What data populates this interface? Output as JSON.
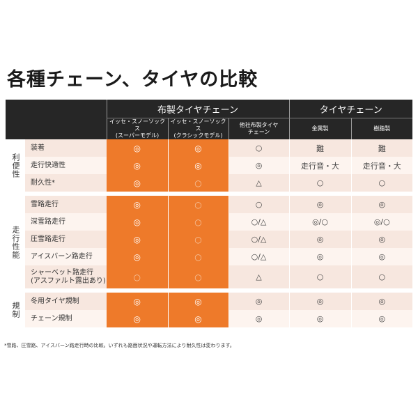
{
  "title": "各種チェーン、タイヤの比較",
  "groups": {
    "fabric": "布製タイヤチェーン",
    "chain": "タイヤチェーン"
  },
  "columns": {
    "super_l1": "イッセ・スノーソックス",
    "super_l2": "(スーパーモデル)",
    "classic_l1": "イッセ・スノーソックス",
    "classic_l2": "(クラシックモデル)",
    "other_l1": "他社布製タイヤ",
    "other_l2": "チェーン",
    "metal": "金属製",
    "resin": "樹脂製"
  },
  "categories": {
    "convenience": "利便性",
    "driving": "走行性能",
    "regulation": "規制"
  },
  "rows": [
    {
      "label": "装着",
      "super": "◎",
      "classic": "◎",
      "other": "○",
      "metal": "難",
      "resin": "難"
    },
    {
      "label": "走行快適性",
      "super": "◎",
      "classic": "◎",
      "other": "◎",
      "metal": "走行音・大",
      "resin": "走行音・大"
    },
    {
      "label": "耐久性*",
      "super": "◎",
      "classic": "○",
      "other": "△",
      "metal": "○",
      "resin": "○"
    },
    {
      "label": "雪路走行",
      "super": "◎",
      "classic": "○",
      "other": "○",
      "metal": "◎",
      "resin": "◎"
    },
    {
      "label": "深雪路走行",
      "super": "◎",
      "classic": "○",
      "other": "○/△",
      "metal": "◎/○",
      "resin": "◎/○"
    },
    {
      "label": "圧雪路走行",
      "super": "◎",
      "classic": "○",
      "other": "○/△",
      "metal": "◎",
      "resin": "◎"
    },
    {
      "label": "アイスバーン路走行",
      "super": "◎",
      "classic": "○",
      "other": "○/△",
      "metal": "◎",
      "resin": "◎"
    },
    {
      "label_l1": "シャーベット路走行",
      "label_l2": "(アスファルト露出あり)",
      "super": "○",
      "classic": "○",
      "other": "△",
      "metal": "○",
      "resin": "○"
    },
    {
      "label": "冬用タイヤ規制",
      "super": "◎",
      "classic": "◎",
      "other": "◎",
      "metal": "◎",
      "resin": "◎"
    },
    {
      "label": "チェーン規制",
      "super": "◎",
      "classic": "◎",
      "other": "◎",
      "metal": "◎",
      "resin": "◎"
    }
  ],
  "footnote": "*雪路、圧雪路、アイスバーン路走行時の比較。いずれも路面状況や運転方法により耐久性は変わります。"
}
